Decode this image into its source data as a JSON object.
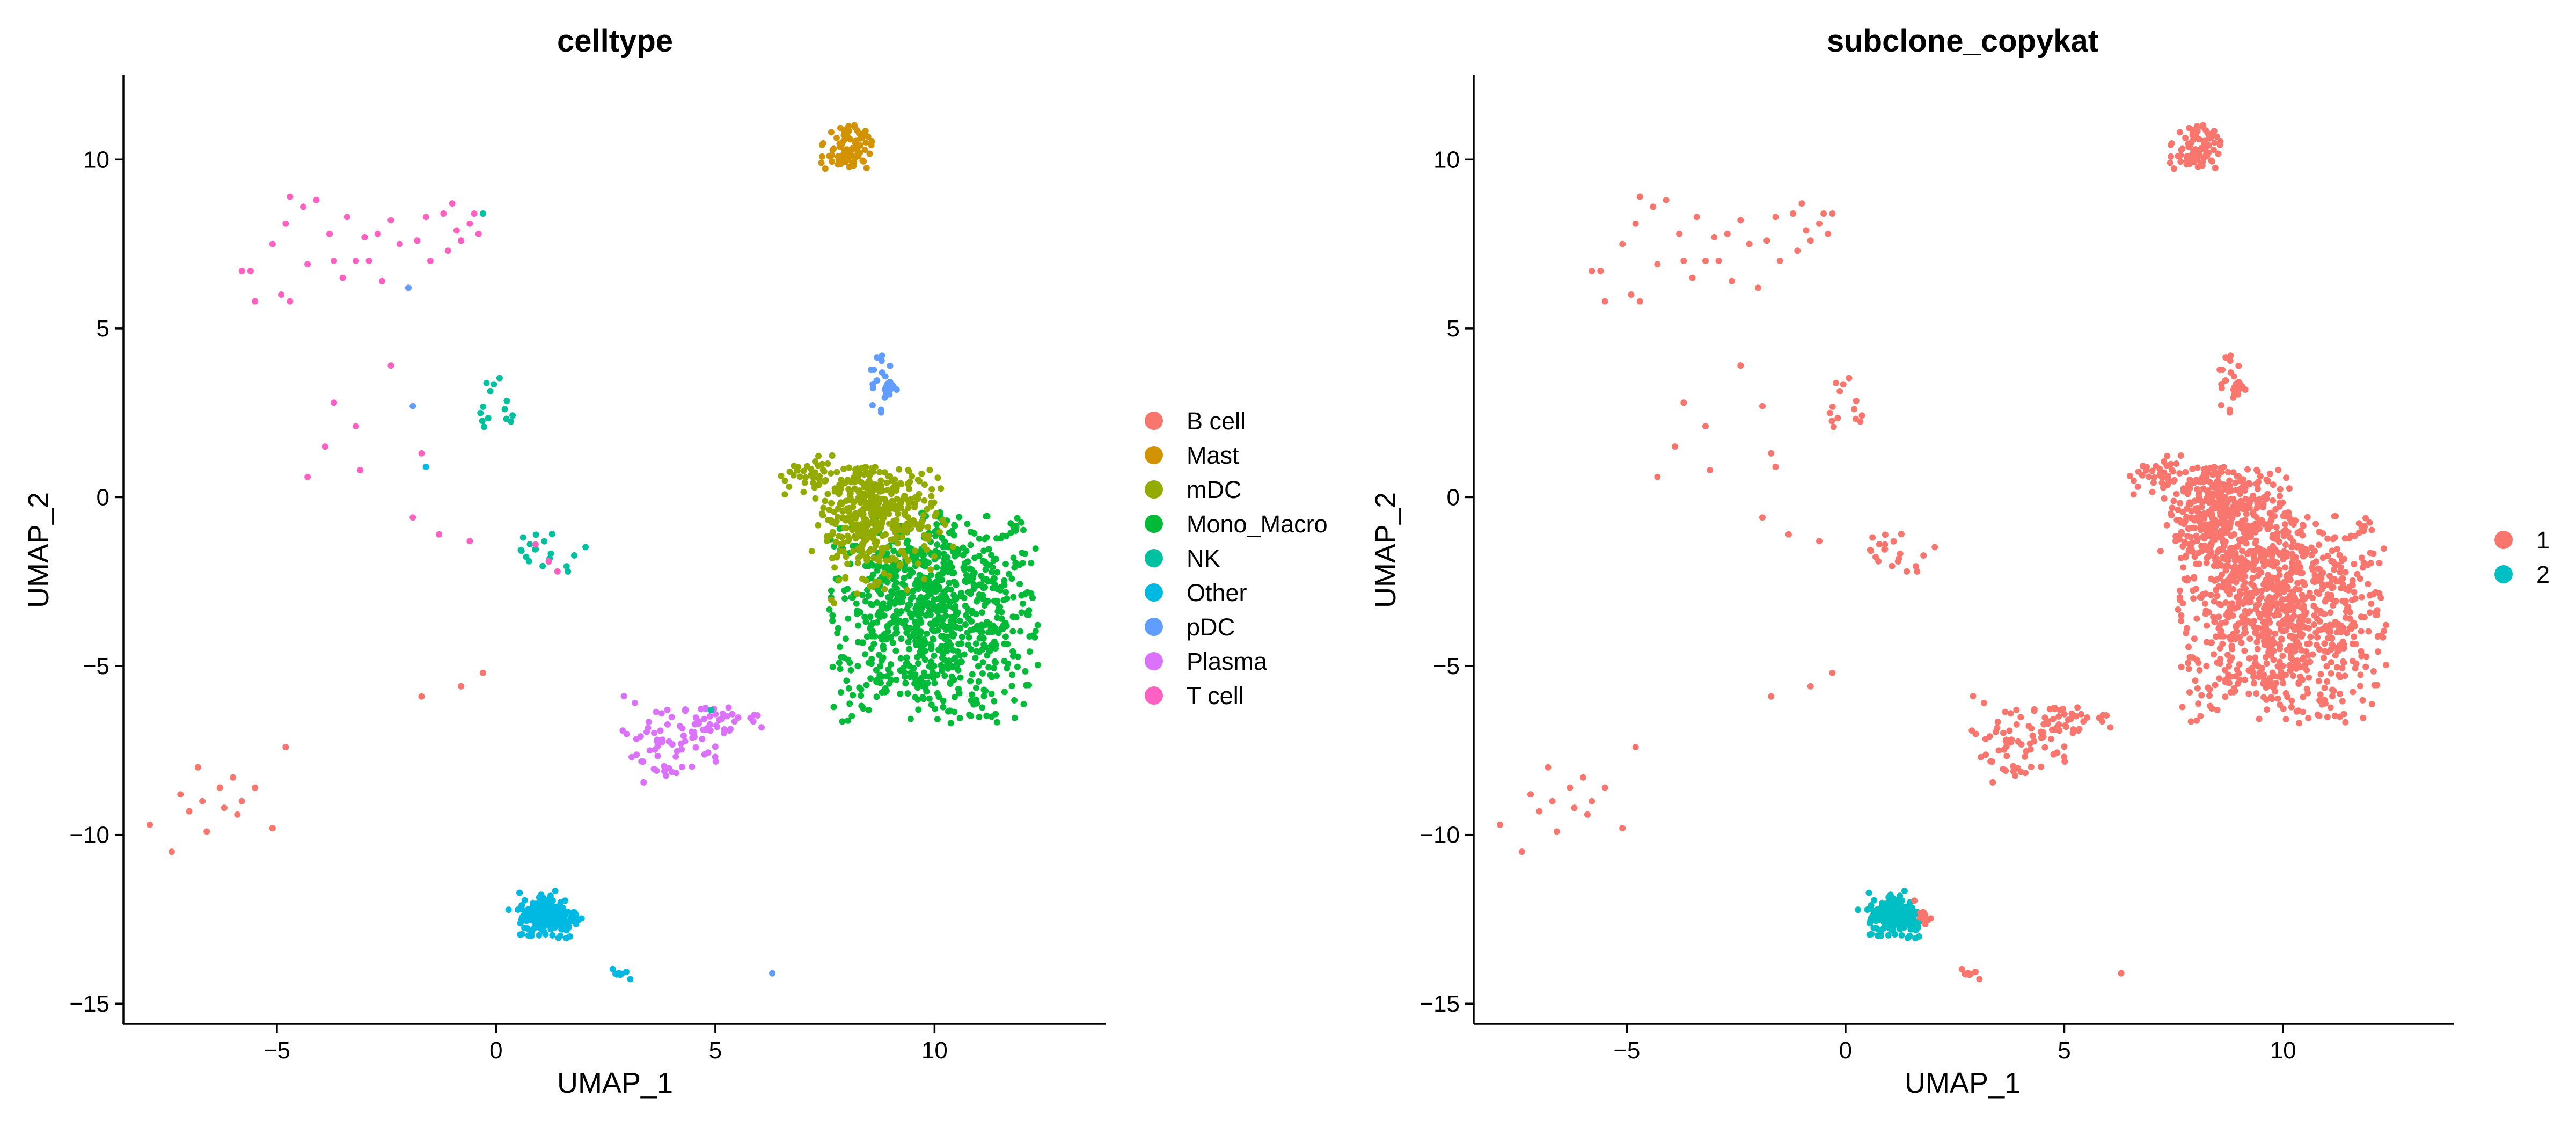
{
  "chart_data": [
    {
      "type": "scatter",
      "title": "celltype",
      "xlabel": "UMAP_1",
      "ylabel": "UMAP_2",
      "xlim": [
        -8.5,
        13.9
      ],
      "ylim": [
        -15.6,
        12.5
      ],
      "xticks": [
        -5,
        0,
        5,
        10
      ],
      "yticks": [
        -15,
        -10,
        -5,
        0,
        5,
        10
      ],
      "xtick_labels": [
        "−5",
        "0",
        "5",
        "10"
      ],
      "ytick_labels": [
        "−15",
        "−10",
        "−5",
        "0",
        "5",
        "10"
      ],
      "legend": [
        {
          "label": "B cell",
          "color": "#F8766D"
        },
        {
          "label": "Mast",
          "color": "#D39200"
        },
        {
          "label": "mDC",
          "color": "#93AA00"
        },
        {
          "label": "Mono_Macro",
          "color": "#00BA38"
        },
        {
          "label": "NK",
          "color": "#00C19F"
        },
        {
          "label": "Other",
          "color": "#00B9E3"
        },
        {
          "label": "pDC",
          "color": "#619CFF"
        },
        {
          "label": "Plasma",
          "color": "#DB72FB"
        },
        {
          "label": "T cell",
          "color": "#FF61C3"
        }
      ],
      "clusters": [
        {
          "label": "Mono_Macro",
          "n": 900,
          "cx": 9.9,
          "cy": -3.4,
          "sx": 1.3,
          "sy": 1.7,
          "xmin": 7.6,
          "xmax": 12.4,
          "ymin": -6.8,
          "ymax": -0.4
        },
        {
          "label": "mDC",
          "n": 420,
          "cx": 8.6,
          "cy": -0.5,
          "sx": 0.7,
          "sy": 0.9,
          "xmin": 7.2,
          "xmax": 10.5,
          "ymin": -3.6,
          "ymax": 0.9
        },
        {
          "label": "mDC",
          "n": 35,
          "cx": 7.0,
          "cy": 0.6,
          "sx": 0.5,
          "sy": 0.3,
          "xmin": 6.3,
          "xmax": 7.7,
          "ymin": -0.2,
          "ymax": 1.3
        },
        {
          "label": "Mast",
          "n": 80,
          "cx": 8.0,
          "cy": 10.3,
          "sx": 0.3,
          "sy": 0.4,
          "xmin": 7.3,
          "xmax": 8.6,
          "ymin": 9.5,
          "ymax": 11.1
        },
        {
          "label": "pDC",
          "n": 28,
          "cx": 8.8,
          "cy": 3.4,
          "sx": 0.15,
          "sy": 0.5,
          "xmin": 8.5,
          "xmax": 9.2,
          "ymin": 2.5,
          "ymax": 4.2
        },
        {
          "label": "Other",
          "n": 210,
          "cx": 1.2,
          "cy": -12.4,
          "sx": 0.35,
          "sy": 0.35,
          "xmin": 0.2,
          "xmax": 2.0,
          "ymin": -13.1,
          "ymax": -11.2
        },
        {
          "label": "Other",
          "n": 8,
          "cx": 2.8,
          "cy": -14.1,
          "sx": 0.15,
          "sy": 0.1,
          "xmin": 2.5,
          "xmax": 3.1,
          "ymin": -14.3,
          "ymax": -13.9
        },
        {
          "label": "Plasma",
          "n": 70,
          "cx": 3.9,
          "cy": -7.2,
          "sx": 0.7,
          "sy": 0.6,
          "xmin": 2.3,
          "xmax": 5.3,
          "ymin": -8.6,
          "ymax": -5.8
        },
        {
          "label": "Plasma",
          "n": 30,
          "cx": 5.0,
          "cy": -6.6,
          "sx": 0.5,
          "sy": 0.2,
          "xmin": 4.2,
          "xmax": 6.3,
          "ymin": -7.0,
          "ymax": -6.2
        },
        {
          "label": "NK",
          "n": 14,
          "cx": 0.0,
          "cy": 2.7,
          "sx": 0.3,
          "sy": 0.5,
          "xmin": -0.5,
          "xmax": 0.4,
          "ymin": 1.9,
          "ymax": 3.8
        },
        {
          "label": "NK",
          "n": 18,
          "cx": 1.1,
          "cy": -1.6,
          "sx": 0.5,
          "sy": 0.4,
          "xmin": 0.5,
          "xmax": 3.1,
          "ymin": -2.8,
          "ymax": -0.7
        }
      ],
      "points": [
        {
          "x": -7.9,
          "y": -9.7,
          "label": "B cell"
        },
        {
          "x": -7.4,
          "y": -10.5,
          "label": "B cell"
        },
        {
          "x": -7.2,
          "y": -8.8,
          "label": "B cell"
        },
        {
          "x": -7.0,
          "y": -9.3,
          "label": "B cell"
        },
        {
          "x": -6.8,
          "y": -8.0,
          "label": "B cell"
        },
        {
          "x": -6.7,
          "y": -9.0,
          "label": "B cell"
        },
        {
          "x": -6.6,
          "y": -9.9,
          "label": "B cell"
        },
        {
          "x": -6.3,
          "y": -8.6,
          "label": "B cell"
        },
        {
          "x": -6.2,
          "y": -9.2,
          "label": "B cell"
        },
        {
          "x": -6.0,
          "y": -8.3,
          "label": "B cell"
        },
        {
          "x": -5.9,
          "y": -9.4,
          "label": "B cell"
        },
        {
          "x": -5.8,
          "y": -9.0,
          "label": "B cell"
        },
        {
          "x": -5.5,
          "y": -8.6,
          "label": "B cell"
        },
        {
          "x": -5.1,
          "y": -9.8,
          "label": "B cell"
        },
        {
          "x": -4.8,
          "y": -7.4,
          "label": "B cell"
        },
        {
          "x": -1.7,
          "y": -5.9,
          "label": "B cell"
        },
        {
          "x": -0.8,
          "y": -5.6,
          "label": "B cell"
        },
        {
          "x": -0.3,
          "y": -5.2,
          "label": "B cell"
        },
        {
          "x": -5.8,
          "y": 6.7,
          "label": "T cell"
        },
        {
          "x": -5.6,
          "y": 6.7,
          "label": "T cell"
        },
        {
          "x": -5.5,
          "y": 5.8,
          "label": "T cell"
        },
        {
          "x": -5.1,
          "y": 7.5,
          "label": "T cell"
        },
        {
          "x": -4.9,
          "y": 6.0,
          "label": "T cell"
        },
        {
          "x": -4.8,
          "y": 8.1,
          "label": "T cell"
        },
        {
          "x": -4.7,
          "y": 8.9,
          "label": "T cell"
        },
        {
          "x": -4.7,
          "y": 5.8,
          "label": "T cell"
        },
        {
          "x": -4.4,
          "y": 8.6,
          "label": "T cell"
        },
        {
          "x": -4.3,
          "y": 6.9,
          "label": "T cell"
        },
        {
          "x": -4.1,
          "y": 8.8,
          "label": "T cell"
        },
        {
          "x": -3.8,
          "y": 7.8,
          "label": "T cell"
        },
        {
          "x": -3.7,
          "y": 7.0,
          "label": "T cell"
        },
        {
          "x": -3.5,
          "y": 6.5,
          "label": "T cell"
        },
        {
          "x": -3.4,
          "y": 8.3,
          "label": "T cell"
        },
        {
          "x": -3.2,
          "y": 7.0,
          "label": "T cell"
        },
        {
          "x": -3.0,
          "y": 7.7,
          "label": "T cell"
        },
        {
          "x": -2.9,
          "y": 7.0,
          "label": "T cell"
        },
        {
          "x": -2.7,
          "y": 7.8,
          "label": "T cell"
        },
        {
          "x": -2.6,
          "y": 6.4,
          "label": "T cell"
        },
        {
          "x": -2.4,
          "y": 8.2,
          "label": "T cell"
        },
        {
          "x": -2.2,
          "y": 7.5,
          "label": "T cell"
        },
        {
          "x": -2.0,
          "y": 6.2,
          "label": "T cell"
        },
        {
          "x": -1.8,
          "y": 7.6,
          "label": "T cell"
        },
        {
          "x": -1.6,
          "y": 8.3,
          "label": "T cell"
        },
        {
          "x": -1.5,
          "y": 7.0,
          "label": "T cell"
        },
        {
          "x": -1.2,
          "y": 8.4,
          "label": "T cell"
        },
        {
          "x": -1.1,
          "y": 7.3,
          "label": "T cell"
        },
        {
          "x": -1.0,
          "y": 8.7,
          "label": "T cell"
        },
        {
          "x": -0.9,
          "y": 7.9,
          "label": "T cell"
        },
        {
          "x": -0.8,
          "y": 7.6,
          "label": "T cell"
        },
        {
          "x": -0.6,
          "y": 8.1,
          "label": "T cell"
        },
        {
          "x": -0.5,
          "y": 8.4,
          "label": "T cell"
        },
        {
          "x": -0.4,
          "y": 7.8,
          "label": "T cell"
        },
        {
          "x": -2.4,
          "y": 3.9,
          "label": "T cell"
        },
        {
          "x": -3.7,
          "y": 2.8,
          "label": "T cell"
        },
        {
          "x": -3.2,
          "y": 2.1,
          "label": "T cell"
        },
        {
          "x": -3.9,
          "y": 1.5,
          "label": "T cell"
        },
        {
          "x": -4.3,
          "y": 0.6,
          "label": "T cell"
        },
        {
          "x": -3.1,
          "y": 0.8,
          "label": "T cell"
        },
        {
          "x": -1.7,
          "y": 1.3,
          "label": "T cell"
        },
        {
          "x": -1.6,
          "y": 0.9,
          "label": "T cell"
        },
        {
          "x": -1.9,
          "y": -0.6,
          "label": "T cell"
        },
        {
          "x": -1.3,
          "y": -1.1,
          "label": "T cell"
        },
        {
          "x": -0.6,
          "y": -1.3,
          "label": "T cell"
        },
        {
          "x": 0.9,
          "y": -1.4,
          "label": "T cell"
        },
        {
          "x": 1.2,
          "y": -1.9,
          "label": "T cell"
        },
        {
          "x": 1.4,
          "y": -2.2,
          "label": "T cell"
        },
        {
          "x": -0.3,
          "y": 8.4,
          "label": "NK"
        },
        {
          "x": -2.0,
          "y": 6.2,
          "label": "pDC"
        },
        {
          "x": -1.9,
          "y": 2.7,
          "label": "pDC"
        },
        {
          "x": -1.6,
          "y": 0.9,
          "label": "Other"
        },
        {
          "x": 6.3,
          "y": -14.1,
          "label": "pDC"
        },
        {
          "x": 4.9,
          "y": -6.3,
          "label": "NK"
        }
      ]
    },
    {
      "type": "scatter",
      "title": "subclone_copykat",
      "xlabel": "UMAP_1",
      "ylabel": "UMAP_2",
      "xlim": [
        -8.5,
        13.9
      ],
      "ylim": [
        -15.6,
        12.5
      ],
      "xticks": [
        -5,
        0,
        5,
        10
      ],
      "yticks": [
        -15,
        -10,
        -5,
        0,
        5,
        10
      ],
      "xtick_labels": [
        "−5",
        "0",
        "5",
        "10"
      ],
      "ytick_labels": [
        "−15",
        "−10",
        "−5",
        "0",
        "5",
        "10"
      ],
      "legend": [
        {
          "label": "1",
          "color": "#F8766D"
        },
        {
          "label": "2",
          "color": "#00BFC4"
        }
      ],
      "note": "Same cells as the celltype panel; all cells are subclone 1 except the bulk of the Other cluster near (1.2, -12.4), which is subclone 2.",
      "subclone2_region": {
        "cx": 1.1,
        "cy": -12.5,
        "xmin": 0.2,
        "xmax": 1.7,
        "ymin": -13.1,
        "ymax": -11.5
      },
      "mixed_region": {
        "xmin": 1.5,
        "xmax": 2.0,
        "ymin": -12.3,
        "ymax": -11.2
      }
    }
  ]
}
